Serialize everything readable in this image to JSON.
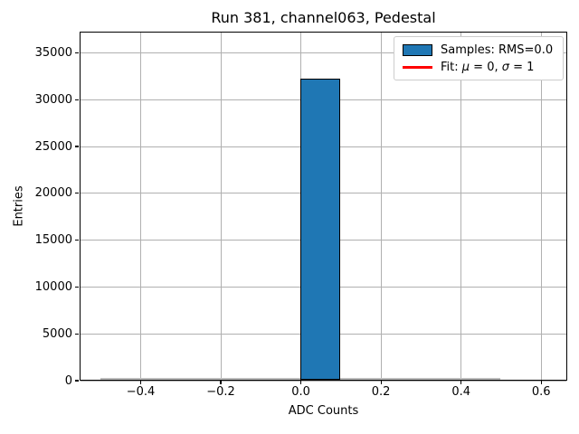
{
  "chart_data": {
    "type": "bar",
    "title": "Run 381, channel063, Pedestal",
    "xlabel": "ADC Counts",
    "ylabel": "Entries",
    "xlim": [
      -0.5525,
      0.665
    ],
    "ylim": [
      0,
      37260
    ],
    "grid": true,
    "legend_position": "upper right",
    "bins": {
      "start": -0.5,
      "width": 0.1
    },
    "counts": [
      0,
      0,
      0,
      0,
      0,
      32200,
      0,
      0,
      0,
      0
    ],
    "xticks": [
      {
        "v": -0.4,
        "label": "−0.4"
      },
      {
        "v": -0.2,
        "label": "−0.2"
      },
      {
        "v": 0.0,
        "label": "0.0"
      },
      {
        "v": 0.2,
        "label": "0.2"
      },
      {
        "v": 0.4,
        "label": "0.4"
      },
      {
        "v": 0.6,
        "label": "0.6"
      }
    ],
    "yticks": [
      {
        "v": 0,
        "label": "0"
      },
      {
        "v": 5000,
        "label": "5000"
      },
      {
        "v": 10000,
        "label": "10000"
      },
      {
        "v": 15000,
        "label": "15000"
      },
      {
        "v": 20000,
        "label": "20000"
      },
      {
        "v": 25000,
        "label": "25000"
      },
      {
        "v": 30000,
        "label": "30000"
      },
      {
        "v": 35000,
        "label": "35000"
      }
    ],
    "legend": [
      {
        "kind": "patch",
        "label": "Samples: RMS=0.0",
        "color": "#1f77b4",
        "edge": "#000000"
      },
      {
        "kind": "line",
        "label": "Fit: μ = 0, σ = 1",
        "color": "#ff0000"
      }
    ],
    "colors": {
      "bar_fill": "#1f77b4",
      "bar_edge": "#000000",
      "fit_line": "#ff0000",
      "grid": "#b0b0b0",
      "zero_bin_outline": "#bcbcbc"
    }
  }
}
